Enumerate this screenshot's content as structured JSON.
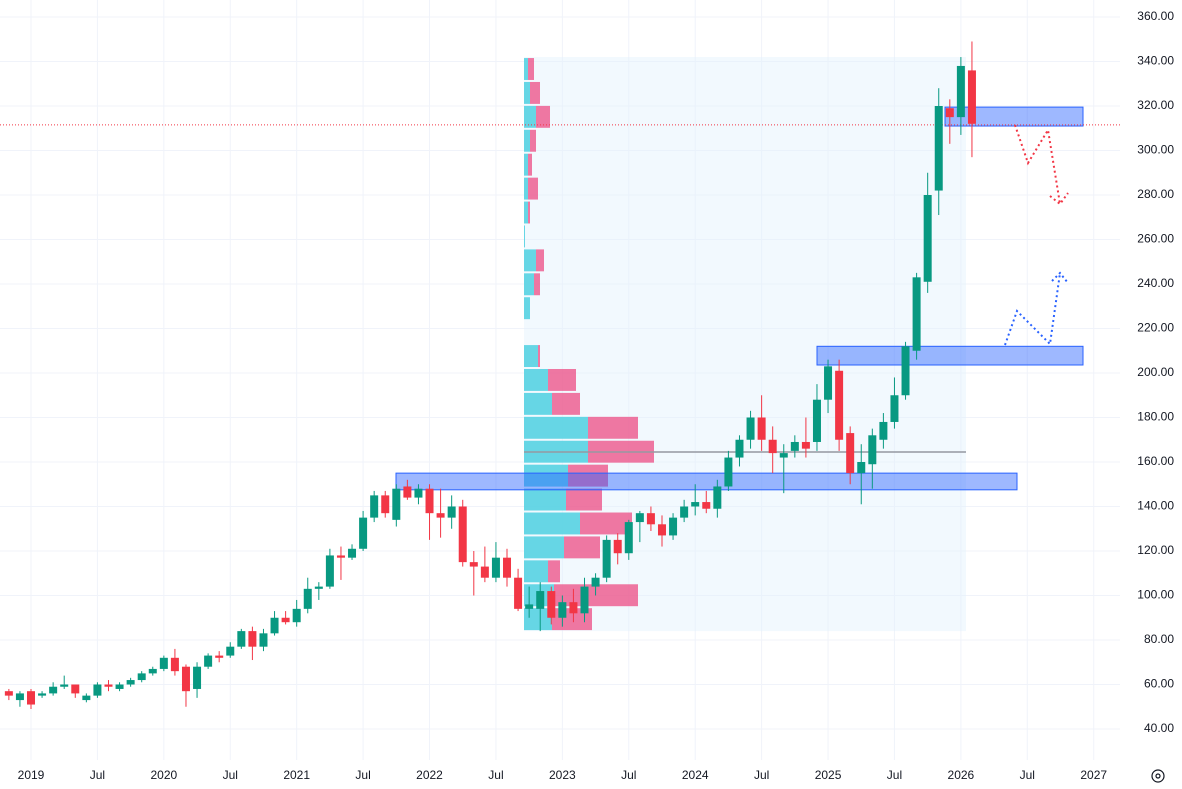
{
  "chart_data": {
    "type": "candlestick",
    "categories": [
      null,
      null,
      "2019",
      null,
      null,
      null,
      null,
      null,
      "Jul",
      null,
      null,
      null,
      null,
      null,
      "2020",
      null,
      null,
      null,
      null,
      null,
      "Jul",
      null,
      null,
      null,
      null,
      null,
      "2021",
      null,
      null,
      null,
      null,
      null,
      "Jul",
      null,
      null,
      null,
      null,
      null,
      "2022",
      null,
      null,
      null,
      null,
      null,
      "Jul",
      null,
      null,
      null,
      null,
      null,
      "2023",
      null,
      null,
      null,
      null,
      null,
      "Jul",
      null,
      null,
      null,
      null,
      null,
      "2024",
      null,
      null,
      null,
      null,
      null,
      "Jul",
      null,
      null,
      null,
      null,
      null,
      "2025",
      null,
      null,
      null,
      null,
      null,
      "Jul",
      null,
      null,
      null,
      null,
      null,
      "2026",
      null,
      null,
      null,
      null,
      null,
      "Jul",
      null,
      null,
      null,
      null,
      null,
      "2027"
    ],
    "ohlc": [
      [
        57,
        58,
        53,
        55
      ],
      [
        53,
        57,
        50,
        56
      ],
      [
        57,
        58,
        49,
        51
      ],
      [
        55,
        57,
        54,
        56
      ],
      [
        56,
        61,
        55,
        59
      ],
      [
        59,
        64,
        58,
        60
      ],
      [
        60,
        60,
        54,
        56
      ],
      [
        53,
        56,
        52,
        55
      ],
      [
        55,
        61,
        54,
        60
      ],
      [
        60,
        62,
        57,
        59
      ],
      [
        58,
        61,
        57,
        60
      ],
      [
        60,
        63,
        59,
        62
      ],
      [
        62,
        66,
        61,
        65
      ],
      [
        65,
        68,
        64,
        67
      ],
      [
        67,
        73,
        66,
        72
      ],
      [
        72,
        76,
        64,
        66
      ],
      [
        68,
        69,
        50,
        57
      ],
      [
        58,
        70,
        54,
        68
      ],
      [
        68,
        74,
        67,
        73
      ],
      [
        73,
        75,
        70,
        72
      ],
      [
        73,
        79,
        72,
        77
      ],
      [
        77,
        85,
        76,
        84
      ],
      [
        84,
        86,
        71,
        77
      ],
      [
        77,
        85,
        75,
        83
      ],
      [
        83,
        93,
        82,
        90
      ],
      [
        90,
        93,
        87,
        88
      ],
      [
        88,
        98,
        86,
        94
      ],
      [
        94,
        108,
        92,
        103
      ],
      [
        103,
        106,
        98,
        104
      ],
      [
        104,
        121,
        103,
        118
      ],
      [
        118,
        122,
        107,
        117
      ],
      [
        117,
        123,
        116,
        121
      ],
      [
        121,
        138,
        120,
        135
      ],
      [
        135,
        147,
        133,
        145
      ],
      [
        145,
        147,
        135,
        137
      ],
      [
        134,
        150,
        131,
        148
      ],
      [
        149,
        152,
        143,
        144
      ],
      [
        144,
        150,
        141,
        148
      ],
      [
        148,
        150,
        125,
        137
      ],
      [
        137,
        148,
        126,
        135
      ],
      [
        135,
        145,
        130,
        140
      ],
      [
        140,
        143,
        113,
        115
      ],
      [
        115,
        120,
        100,
        113
      ],
      [
        113,
        122,
        106,
        108
      ],
      [
        108,
        124,
        106,
        117
      ],
      [
        117,
        121,
        104,
        108
      ],
      [
        108,
        112,
        93,
        94
      ],
      [
        94,
        104,
        90,
        96
      ],
      [
        94,
        106,
        84,
        102
      ],
      [
        102,
        104,
        87,
        90
      ],
      [
        90,
        100,
        86,
        97
      ],
      [
        97,
        103,
        88,
        92
      ],
      [
        92,
        108,
        88,
        104
      ],
      [
        104,
        110,
        100,
        108
      ],
      [
        108,
        127,
        106,
        125
      ],
      [
        125,
        128,
        114,
        119
      ],
      [
        119,
        134,
        116,
        133
      ],
      [
        133,
        138,
        124,
        137
      ],
      [
        137,
        140,
        129,
        132
      ],
      [
        132,
        136,
        122,
        127
      ],
      [
        127,
        137,
        125,
        135
      ],
      [
        135,
        143,
        133,
        140
      ],
      [
        140,
        150,
        136,
        142
      ],
      [
        142,
        147,
        137,
        139
      ],
      [
        139,
        152,
        135,
        149
      ],
      [
        149,
        165,
        147,
        162
      ],
      [
        162,
        172,
        158,
        170
      ],
      [
        170,
        183,
        166,
        180
      ],
      [
        180,
        190,
        165,
        170
      ],
      [
        170,
        176,
        155,
        164
      ],
      [
        162,
        168,
        146,
        164
      ],
      [
        165,
        172,
        162,
        169
      ],
      [
        169,
        180,
        162,
        166
      ],
      [
        169,
        195,
        165,
        188
      ],
      [
        188,
        206,
        182,
        203
      ],
      [
        201,
        206,
        165,
        170
      ],
      [
        173,
        176,
        150,
        155
      ],
      [
        155,
        168,
        141,
        160
      ],
      [
        159,
        175,
        148,
        172
      ],
      [
        170,
        182,
        166,
        178
      ],
      [
        178,
        198,
        175,
        190
      ],
      [
        190,
        214,
        188,
        212
      ],
      [
        210,
        245,
        206,
        243
      ],
      [
        241,
        290,
        236,
        280
      ],
      [
        282,
        328,
        271,
        320
      ],
      [
        319,
        323,
        303,
        315
      ],
      [
        315,
        342,
        307,
        338
      ],
      [
        336,
        349,
        297,
        312
      ],
      null,
      null,
      null,
      null,
      null,
      null,
      null,
      null,
      null,
      null,
      null
    ],
    "up_color": "#089981",
    "down_color": "#f23645",
    "ylim": [
      26.07,
      367.64
    ],
    "yticks": [
      {
        "value": 40,
        "label": "40.00"
      },
      {
        "value": 60,
        "label": "60.00"
      },
      {
        "value": 80,
        "label": "80.00"
      },
      {
        "value": 100,
        "label": "100.00"
      },
      {
        "value": 120,
        "label": "120.00"
      },
      {
        "value": 140,
        "label": "140.00"
      },
      {
        "value": 160,
        "label": "160.00"
      },
      {
        "value": 180,
        "label": "180.00"
      },
      {
        "value": 200,
        "label": "200.00"
      },
      {
        "value": 220,
        "label": "220.00"
      },
      {
        "value": 240,
        "label": "240.00"
      },
      {
        "value": 260,
        "label": "260.00"
      },
      {
        "value": 280,
        "label": "280.00"
      },
      {
        "value": 300,
        "label": "300.00"
      },
      {
        "value": 320,
        "label": "320.00"
      },
      {
        "value": 340,
        "label": "340.00"
      },
      {
        "value": 360,
        "label": "360.00"
      }
    ],
    "grid": true,
    "price_line": 311.5,
    "zones": [
      [
        147.5,
        155
      ],
      [
        203.6,
        212
      ],
      [
        311,
        319.5
      ]
    ],
    "volume_profile": {
      "bins": [
        84,
        94.75,
        105.5,
        116.25,
        127,
        137.75,
        148.5,
        159.25,
        170,
        180.75,
        191.5,
        202.25,
        213,
        223.75,
        234.5,
        245.25,
        256,
        266.75,
        277.5,
        288.25,
        299,
        309.75,
        320.5,
        331.25,
        342
      ],
      "up": [
        28,
        30,
        24,
        40,
        56,
        42,
        44,
        64,
        64,
        28,
        24,
        14,
        0,
        6,
        10,
        12,
        1,
        4,
        4,
        4,
        6,
        12,
        6,
        4
      ],
      "down": [
        40,
        84,
        12,
        36,
        52,
        36,
        40,
        66,
        50,
        28,
        28,
        2,
        0,
        0,
        6,
        8,
        0,
        2,
        10,
        4,
        6,
        14,
        10,
        6
      ],
      "poc": 164.5
    }
  }
}
